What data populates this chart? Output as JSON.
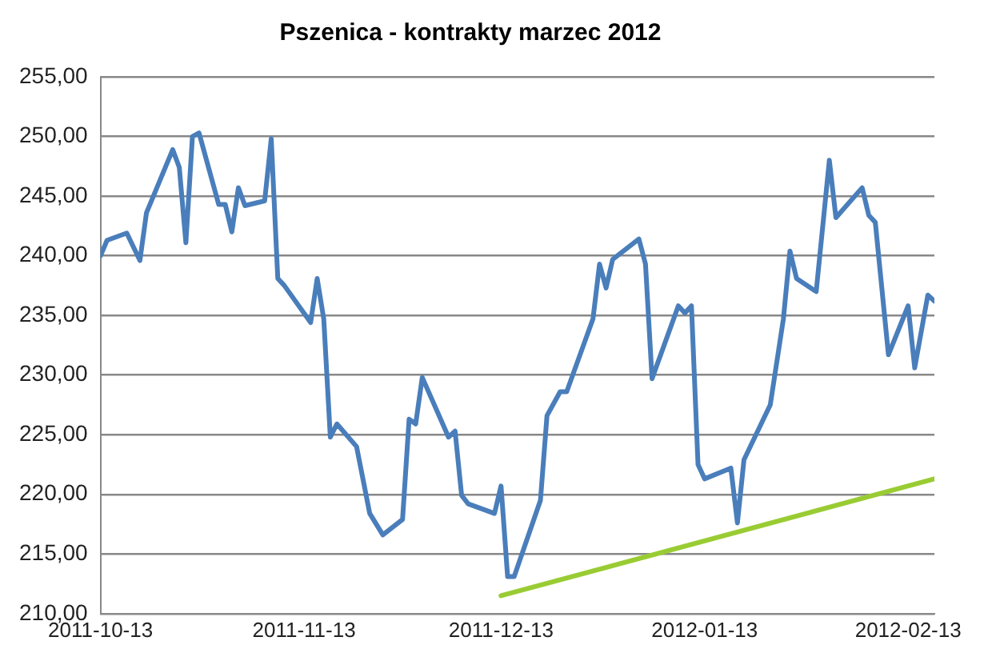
{
  "chart_data": {
    "type": "line",
    "title": "Pszenica - kontrakty marzec 2012",
    "xlim": [
      "2011-10-13",
      "2012-02-17"
    ],
    "xticks": [
      "2011-10-13",
      "2011-11-13",
      "2011-12-13",
      "2012-01-13",
      "2012-02-13"
    ],
    "ylim": [
      210,
      255
    ],
    "yticks": [
      {
        "value": 210,
        "label": "210,00"
      },
      {
        "value": 215,
        "label": "215,00"
      },
      {
        "value": 220,
        "label": "220,00"
      },
      {
        "value": 225,
        "label": "225,00"
      },
      {
        "value": 230,
        "label": "230,00"
      },
      {
        "value": 235,
        "label": "235,00"
      },
      {
        "value": 240,
        "label": "240,00"
      },
      {
        "value": 245,
        "label": "245,00"
      },
      {
        "value": 250,
        "label": "250,00"
      },
      {
        "value": 255,
        "label": "255,00"
      }
    ],
    "grid": "y",
    "legend": false,
    "marker": "none",
    "line_style": "solid",
    "series": [
      {
        "color": "#4a7ebb",
        "x": [
          "2011-10-13",
          "2011-10-14",
          "2011-10-17",
          "2011-10-19",
          "2011-10-20",
          "2011-10-24",
          "2011-10-25",
          "2011-10-26",
          "2011-10-27",
          "2011-10-28",
          "2011-10-31",
          "2011-11-01",
          "2011-11-02",
          "2011-11-03",
          "2011-11-04",
          "2011-11-07",
          "2011-11-08",
          "2011-11-09",
          "2011-11-10",
          "2011-11-14",
          "2011-11-15",
          "2011-11-16",
          "2011-11-17",
          "2011-11-18",
          "2011-11-21",
          "2011-11-23",
          "2011-11-25",
          "2011-11-28",
          "2011-11-29",
          "2011-11-30",
          "2011-12-01",
          "2011-12-05",
          "2011-12-06",
          "2011-12-07",
          "2011-12-08",
          "2011-12-12",
          "2011-12-13",
          "2011-12-14",
          "2011-12-15",
          "2011-12-19",
          "2011-12-20",
          "2011-12-22",
          "2011-12-23",
          "2011-12-27",
          "2011-12-28",
          "2011-12-29",
          "2011-12-30",
          "2012-01-03",
          "2012-01-04",
          "2012-01-05",
          "2012-01-09",
          "2012-01-10",
          "2012-01-11",
          "2012-01-12",
          "2012-01-13",
          "2012-01-17",
          "2012-01-18",
          "2012-01-19",
          "2012-01-23",
          "2012-01-25",
          "2012-01-26",
          "2012-01-27",
          "2012-01-30",
          "2012-02-01",
          "2012-02-02",
          "2012-02-06",
          "2012-02-07",
          "2012-02-08",
          "2012-02-10",
          "2012-02-13",
          "2012-02-14",
          "2012-02-16",
          "2012-02-17"
        ],
        "values": [
          240.0,
          241.3,
          241.9,
          239.6,
          243.6,
          248.9,
          247.4,
          241.1,
          250.0,
          250.3,
          244.3,
          244.3,
          242.0,
          245.7,
          244.2,
          244.6,
          249.8,
          238.1,
          237.5,
          234.4,
          238.1,
          234.7,
          224.8,
          225.9,
          224.0,
          218.4,
          216.6,
          217.9,
          226.3,
          225.9,
          229.8,
          224.8,
          225.3,
          219.9,
          219.2,
          218.4,
          220.7,
          213.1,
          213.1,
          219.5,
          226.6,
          228.6,
          228.6,
          234.7,
          239.3,
          237.3,
          239.7,
          241.4,
          239.3,
          229.7,
          235.8,
          235.2,
          235.8,
          222.5,
          221.3,
          222.2,
          217.6,
          222.9,
          227.5,
          234.7,
          240.4,
          238.1,
          237.0,
          248.0,
          243.2,
          245.7,
          243.4,
          242.8,
          231.7,
          235.8,
          230.6,
          236.7,
          236.2
        ]
      },
      {
        "type": "line",
        "color": "#99cc33",
        "x": [
          "2011-12-13",
          "2012-02-17"
        ],
        "values": [
          211.5,
          221.3
        ]
      }
    ]
  }
}
